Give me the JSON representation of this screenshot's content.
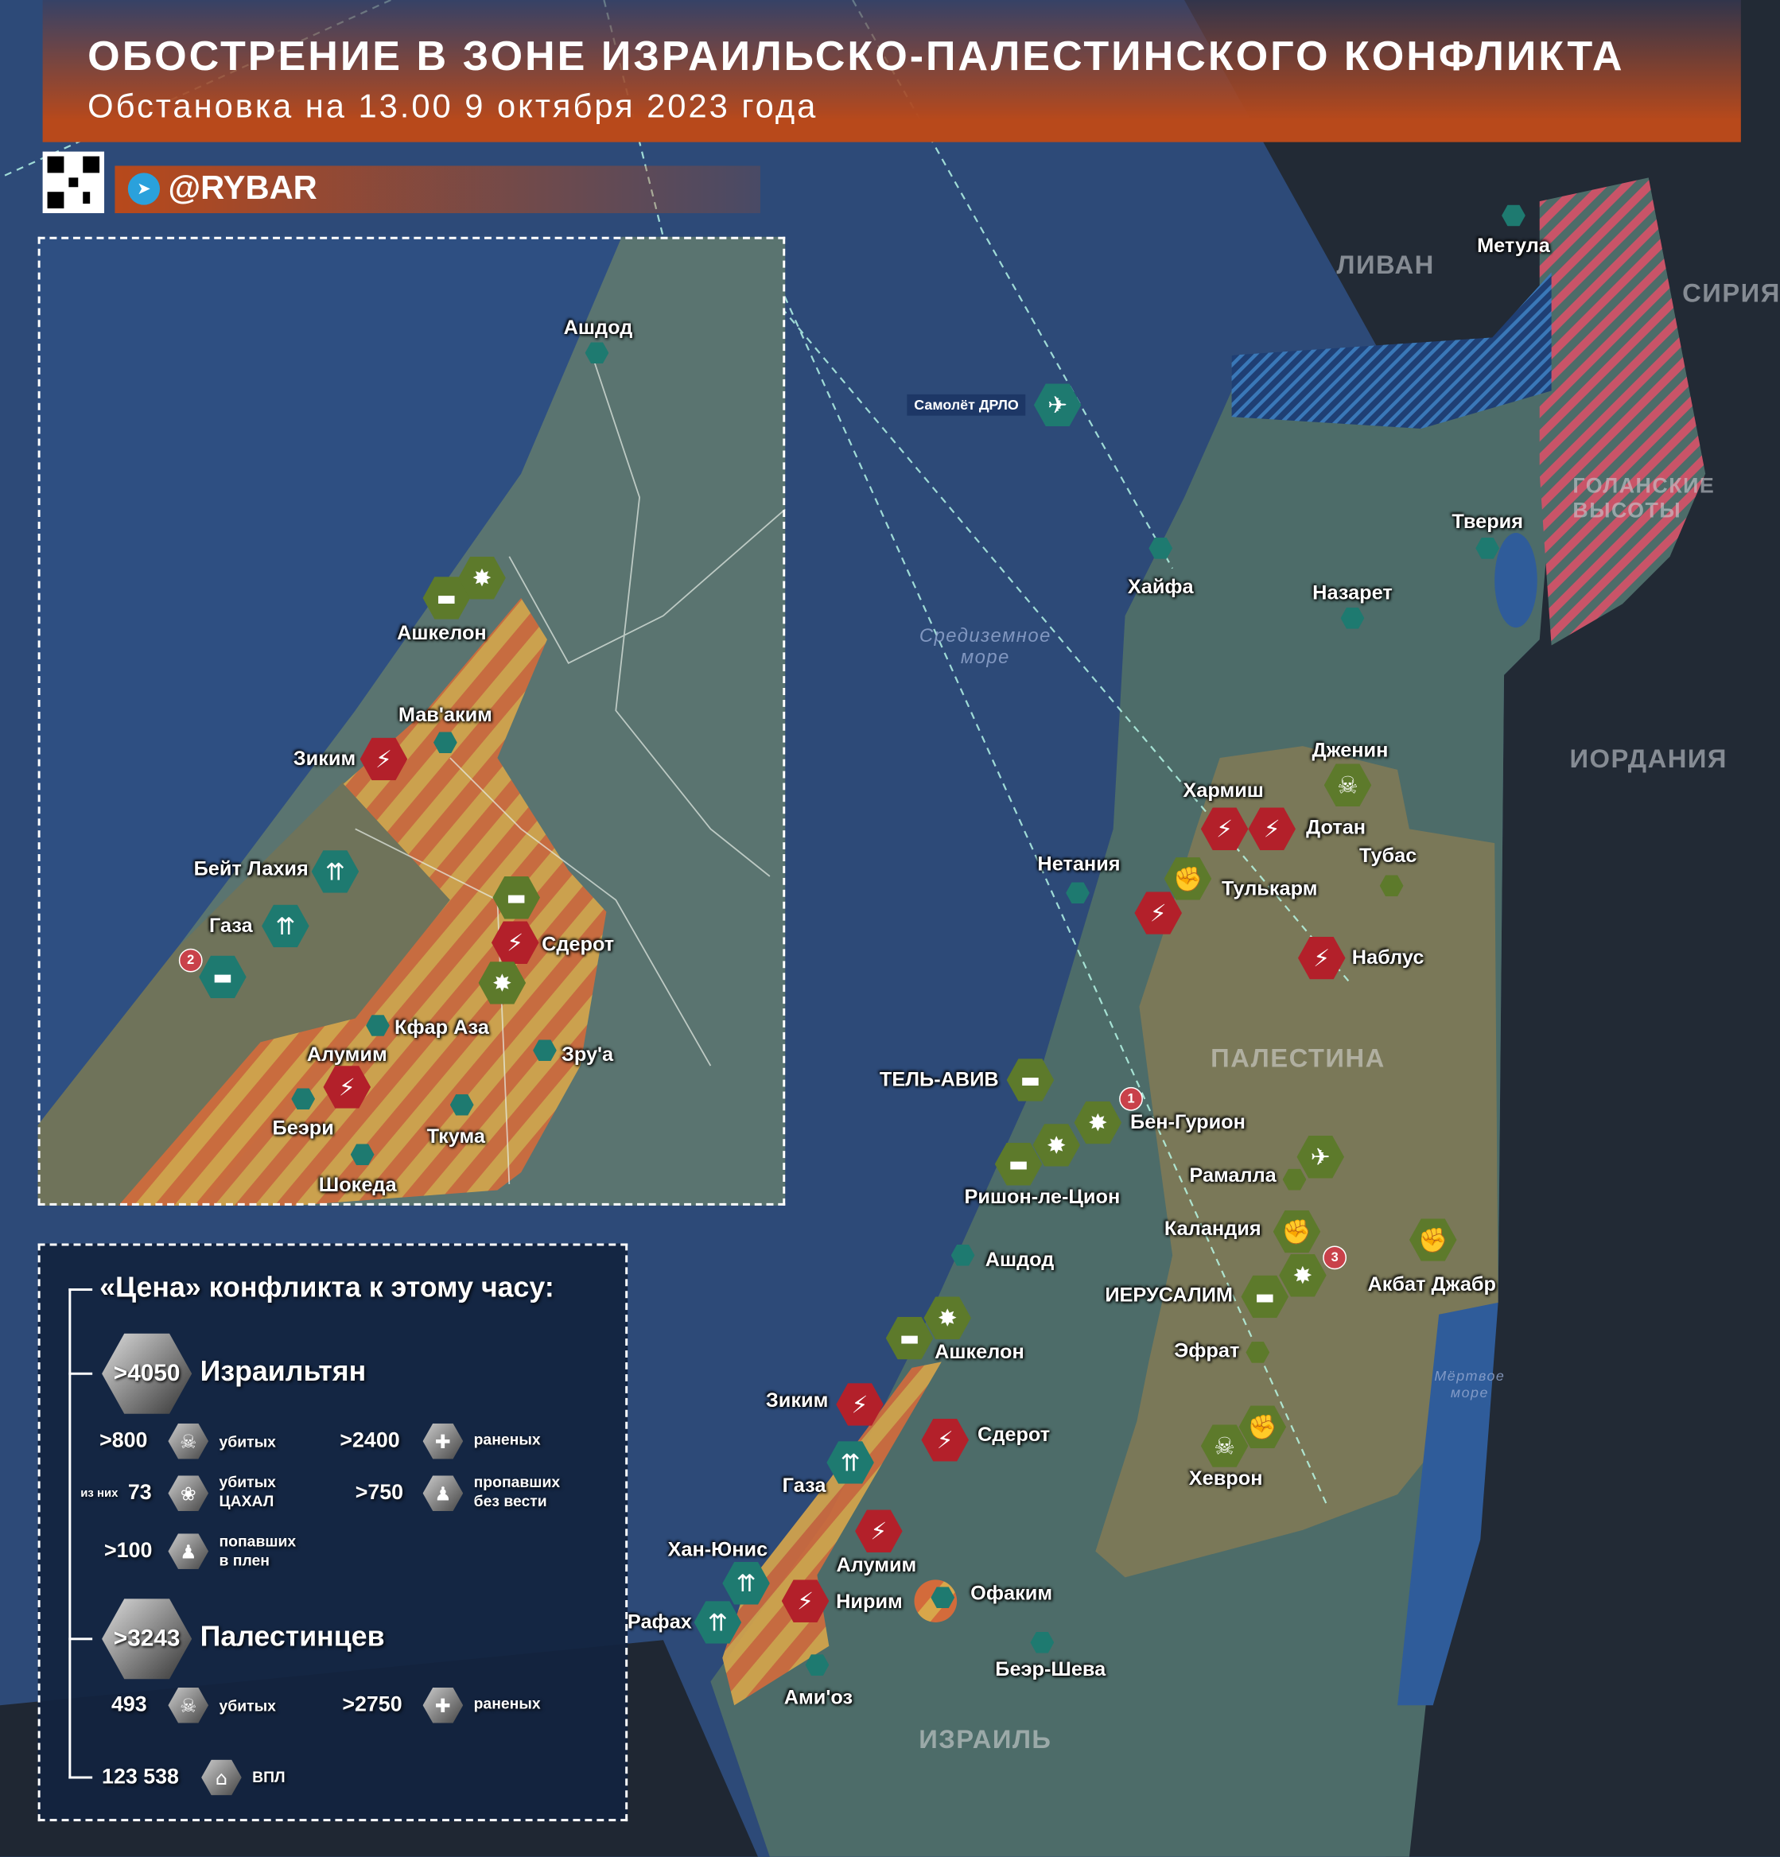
{
  "header": {
    "title": "ОБОСТРЕНИЕ В ЗОНЕ ИЗРАИЛЬСКО-ПАЛЕСТИНСКОГО КОНФЛИКТА",
    "subtitle": "Обстановка на 13.00 9 октября 2023 года",
    "handle": "@RYBAR"
  },
  "colors": {
    "header": "#b8491b",
    "strike": "#b3202a",
    "palestinian_marker": "#5d7a2b",
    "israeli_marker": "#1e7a70",
    "sea": "#2d4a78",
    "israel_land": "#4d6c69",
    "palestine_land": "#7a7858",
    "conflict_zone_stripes": [
      "#d36b3b",
      "#d8a64a"
    ]
  },
  "icons": [
    "telegram-icon",
    "qr-code",
    "lightning-icon",
    "skull-icon",
    "fist-icon",
    "tank-icon",
    "explosion-icon",
    "drone-icon",
    "rockets-icon",
    "airplane-icon"
  ],
  "map": {
    "countries": {
      "lebanon": "ЛИВАН",
      "syria": "СИРИЯ",
      "jordan": "ИОРДАНИЯ",
      "palestine": "ПАЛЕСТИНА",
      "israel": "ИЗРАИЛЬ",
      "golan": "ГОЛАНСКИЕ ВЫСОТЫ"
    },
    "seas": {
      "med": "Средиземное море",
      "dead": "Мёртвое море"
    },
    "aircraft": "Самолёт ДРЛО",
    "cities": {
      "metula": "Метула",
      "haifa": "Хайфа",
      "nazareth": "Назарет",
      "tiberias": "Тверия",
      "jenin": "Дженин",
      "harmish": "Хармиш",
      "dotan": "Дотан",
      "tubas": "Тубас",
      "netanya": "Нетания",
      "tulkarm": "Тулькарм",
      "nablus": "Наблус",
      "telaviv": "ТЕЛЬ-АВИВ",
      "bengurion": "Бен-Гурион",
      "ramallah": "Рамалла",
      "rishon": "Ришон-ле-Цион",
      "qalandia": "Каландия",
      "ashdod": "Ашдод",
      "jerusalem": "ИЕРУСАЛИМ",
      "aqbat": "Акбат Джабр",
      "ashkelon": "Ашкелон",
      "efrat": "Эфрат",
      "zikim": "Зиким",
      "sderot": "Сдерот",
      "hebron": "Хеврон",
      "gaza": "Газа",
      "khanyunis": "Хан-Юнис",
      "alumim": "Алумим",
      "ofakim": "Офаким",
      "nirim": "Нирим",
      "rafah": "Рафах",
      "beersheba": "Беэр-Шева",
      "amioz": "Ами'оз"
    },
    "badges": [
      "1",
      "2",
      "3"
    ]
  },
  "inset": {
    "cities": {
      "ashdod": "Ашдод",
      "ashkelon": "Ашкелон",
      "mavakim": "Мав'аким",
      "zikim": "Зиким",
      "beitlahia": "Бейт Лахия",
      "gaza": "Газа",
      "sderot": "Сдерот",
      "kfaraza": "Кфар Аза",
      "zrua": "Зру'а",
      "alumim": "Алумим",
      "beeri": "Беэри",
      "tkuma": "Ткума",
      "shokeda": "Шокеда"
    }
  },
  "stats": {
    "title": "«Цена» конфликта к этому часу:",
    "israelis": {
      "total": ">4050",
      "label": "Израильтян",
      "killed": {
        "value": ">800",
        "label": "убитых"
      },
      "wounded": {
        "value": ">2400",
        "label": "раненых"
      },
      "idf_prefix": "из них",
      "idf_killed": {
        "value": "73",
        "label1": "убитых",
        "label2": "ЦАХАЛ"
      },
      "missing": {
        "value": ">750",
        "label1": "пропавших",
        "label2": "без вести"
      },
      "captured": {
        "value": ">100",
        "label1": "попавших",
        "label2": "в плен"
      }
    },
    "palestinians": {
      "total": ">3243",
      "label": "Палестинцев",
      "killed": {
        "value": "493",
        "label": "убитых"
      },
      "wounded": {
        "value": ">2750",
        "label": "раненых"
      }
    },
    "idp": {
      "value": "123 538",
      "label": "ВПЛ"
    }
  }
}
